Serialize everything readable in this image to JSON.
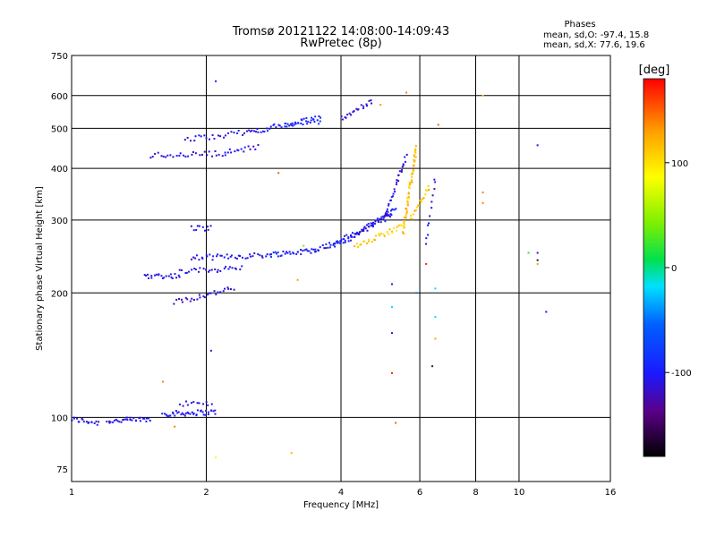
{
  "chart_data": {
    "type": "scatter",
    "title": "Tromsø 20121122 14:08:00-14:09:43",
    "subtitle": "RwPretec (8p)",
    "xlabel": "Frequency [MHz]",
    "ylabel": "Stationary phase Virtual Height [km]",
    "x_scale": "log",
    "y_scale": "log",
    "xlim": [
      1,
      16
    ],
    "ylim": [
      70,
      750
    ],
    "x_ticks": [
      1,
      2,
      4,
      6,
      8,
      10,
      16
    ],
    "x_tick_labels": [
      "1",
      "2",
      "4",
      "6",
      "8",
      "10",
      "16"
    ],
    "y_ticks": [
      75,
      100,
      200,
      300,
      400,
      500,
      600,
      750
    ],
    "y_tick_labels": [
      "75",
      "100",
      "200",
      "300",
      "400",
      "500",
      "600",
      "750"
    ],
    "grid": true,
    "phase_stats": {
      "title": "Phases",
      "line_o": "mean, sd,O: -97.4, 15.8",
      "line_x": "mean, sd,X:  77.6, 19.6"
    },
    "colorbar": {
      "label": "[deg]",
      "range": [
        -180,
        180
      ],
      "ticks": [
        100,
        0,
        -100
      ],
      "tick_labels": [
        "100",
        "0",
        "-100"
      ]
    },
    "traces": [
      {
        "x0": 1.0,
        "x1": 1.15,
        "y0": 99,
        "y1": 97,
        "phase": -110,
        "n": 18
      },
      {
        "x0": 1.2,
        "x1": 1.5,
        "y0": 98,
        "y1": 99,
        "phase": -108,
        "n": 30
      },
      {
        "x0": 1.6,
        "x1": 2.1,
        "y0": 102,
        "y1": 103,
        "phase": -105,
        "n": 40
      },
      {
        "x0": 1.75,
        "x1": 2.05,
        "y0": 108,
        "y1": 108,
        "phase": -110,
        "n": 12
      },
      {
        "x0": 1.45,
        "x1": 1.75,
        "y0": 220,
        "y1": 220,
        "phase": -108,
        "n": 22
      },
      {
        "x0": 1.7,
        "x1": 2.3,
        "y0": 190,
        "y1": 205,
        "phase": -112,
        "n": 28
      },
      {
        "x0": 1.75,
        "x1": 2.4,
        "y0": 225,
        "y1": 230,
        "phase": -106,
        "n": 28
      },
      {
        "x0": 1.85,
        "x1": 2.05,
        "y0": 287,
        "y1": 287,
        "phase": -110,
        "n": 10
      },
      {
        "x0": 1.85,
        "x1": 2.8,
        "y0": 243,
        "y1": 247,
        "phase": -108,
        "n": 40
      },
      {
        "x0": 2.8,
        "x1": 3.5,
        "y0": 248,
        "y1": 253,
        "phase": -95,
        "n": 30
      },
      {
        "x0": 3.5,
        "x1": 4.2,
        "y0": 255,
        "y1": 270,
        "phase": -100,
        "n": 25
      },
      {
        "x0": 4.2,
        "x1": 5.3,
        "y0": 270,
        "y1": 320,
        "phase": -105,
        "n": 40
      },
      {
        "x0": 3.8,
        "x1": 5.2,
        "y0": 260,
        "y1": 310,
        "phase": -102,
        "n": 35
      },
      {
        "x0": 5.0,
        "x1": 5.6,
        "y0": 300,
        "y1": 430,
        "phase": -108,
        "n": 30
      },
      {
        "x0": 4.3,
        "x1": 5.5,
        "y0": 260,
        "y1": 290,
        "phase": 110,
        "n": 30
      },
      {
        "x0": 5.5,
        "x1": 5.9,
        "y0": 280,
        "y1": 450,
        "phase": 115,
        "n": 60
      },
      {
        "x0": 5.7,
        "x1": 6.3,
        "y0": 300,
        "y1": 360,
        "phase": 112,
        "n": 20
      },
      {
        "x0": 1.5,
        "x1": 2.2,
        "y0": 430,
        "y1": 435,
        "phase": -110,
        "n": 30
      },
      {
        "x0": 2.2,
        "x1": 2.6,
        "y0": 437,
        "y1": 450,
        "phase": -108,
        "n": 15
      },
      {
        "x0": 1.8,
        "x1": 2.5,
        "y0": 470,
        "y1": 490,
        "phase": -106,
        "n": 25
      },
      {
        "x0": 2.5,
        "x1": 3.6,
        "y0": 490,
        "y1": 530,
        "phase": -100,
        "n": 40
      },
      {
        "x0": 3.0,
        "x1": 3.6,
        "y0": 510,
        "y1": 520,
        "phase": -90,
        "n": 15
      },
      {
        "x0": 4.0,
        "x1": 4.7,
        "y0": 530,
        "y1": 580,
        "phase": -108,
        "n": 20
      },
      {
        "x0": 6.2,
        "x1": 6.5,
        "y0": 260,
        "y1": 380,
        "phase": -110,
        "n": 12
      }
    ],
    "outliers": [
      {
        "x": 2.1,
        "y": 650,
        "phase": -110
      },
      {
        "x": 5.3,
        "y": 97,
        "phase": 150
      },
      {
        "x": 5.2,
        "y": 128,
        "phase": 170
      },
      {
        "x": 6.4,
        "y": 133,
        "phase": -150
      },
      {
        "x": 5.2,
        "y": 160,
        "phase": -110
      },
      {
        "x": 5.2,
        "y": 185,
        "phase": -20
      },
      {
        "x": 5.2,
        "y": 210,
        "phase": -110
      },
      {
        "x": 6.5,
        "y": 155,
        "phase": 130
      },
      {
        "x": 6.5,
        "y": 175,
        "phase": -20
      },
      {
        "x": 6.5,
        "y": 205,
        "phase": -20
      },
      {
        "x": 5.9,
        "y": 200,
        "phase": -50
      },
      {
        "x": 6.2,
        "y": 235,
        "phase": 170
      },
      {
        "x": 8.3,
        "y": 350,
        "phase": 140
      },
      {
        "x": 8.3,
        "y": 330,
        "phase": 140
      },
      {
        "x": 8.3,
        "y": 600,
        "phase": 110
      },
      {
        "x": 11.0,
        "y": 455,
        "phase": -110
      },
      {
        "x": 11.0,
        "y": 250,
        "phase": -110
      },
      {
        "x": 11.0,
        "y": 240,
        "phase": -150
      },
      {
        "x": 11.0,
        "y": 235,
        "phase": 130
      },
      {
        "x": 10.5,
        "y": 250,
        "phase": 20
      },
      {
        "x": 11.5,
        "y": 180,
        "phase": -110
      },
      {
        "x": 3.1,
        "y": 82,
        "phase": 120
      },
      {
        "x": 2.1,
        "y": 80,
        "phase": 80
      },
      {
        "x": 1.6,
        "y": 122,
        "phase": 140
      },
      {
        "x": 1.7,
        "y": 95,
        "phase": 140
      },
      {
        "x": 2.05,
        "y": 145,
        "phase": -110
      },
      {
        "x": 2.9,
        "y": 390,
        "phase": 150
      },
      {
        "x": 3.2,
        "y": 215,
        "phase": 130
      },
      {
        "x": 3.3,
        "y": 260,
        "phase": 40
      },
      {
        "x": 4.9,
        "y": 570,
        "phase": 130
      },
      {
        "x": 5.6,
        "y": 610,
        "phase": 140
      },
      {
        "x": 6.6,
        "y": 510,
        "phase": 150
      }
    ]
  }
}
